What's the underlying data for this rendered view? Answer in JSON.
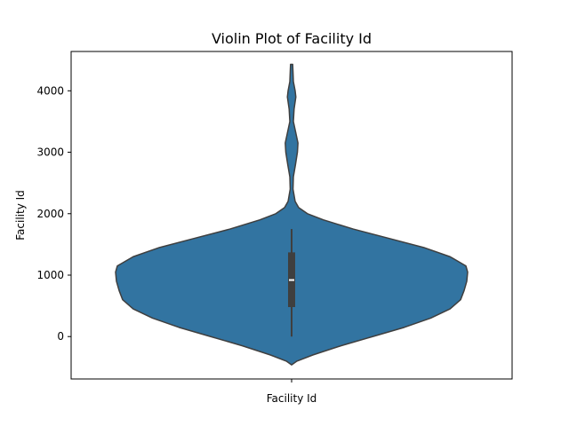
{
  "chart_data": {
    "type": "violin",
    "title": "Violin Plot of Facility Id",
    "xlabel": "",
    "ylabel": "Facility Id",
    "categories": [
      "Facility Id"
    ],
    "ylim": [
      -690,
      4640
    ],
    "yticks": [
      0,
      1000,
      2000,
      3000,
      4000
    ],
    "yticklabels": [
      "0",
      "1000",
      "2000",
      "3000",
      "4000"
    ],
    "grid": false,
    "legend": "none",
    "colors": {
      "violin_fill": "#3274a1",
      "violin_edge": "#3f3f3f",
      "box": "#3f3f3f",
      "median": "#ffffff"
    },
    "series": [
      {
        "density_profile": [
          {
            "y": -460,
            "w": 0.0
          },
          {
            "y": -400,
            "w": 0.03
          },
          {
            "y": -300,
            "w": 0.12
          },
          {
            "y": -150,
            "w": 0.28
          },
          {
            "y": 0,
            "w": 0.46
          },
          {
            "y": 150,
            "w": 0.64
          },
          {
            "y": 300,
            "w": 0.79
          },
          {
            "y": 450,
            "w": 0.9
          },
          {
            "y": 600,
            "w": 0.96
          },
          {
            "y": 750,
            "w": 0.98
          },
          {
            "y": 900,
            "w": 0.995
          },
          {
            "y": 1050,
            "w": 1.0
          },
          {
            "y": 1150,
            "w": 0.99
          },
          {
            "y": 1300,
            "w": 0.9
          },
          {
            "y": 1450,
            "w": 0.75
          },
          {
            "y": 1600,
            "w": 0.55
          },
          {
            "y": 1750,
            "w": 0.35
          },
          {
            "y": 1900,
            "w": 0.18
          },
          {
            "y": 2000,
            "w": 0.09
          },
          {
            "y": 2100,
            "w": 0.04
          },
          {
            "y": 2200,
            "w": 0.02
          },
          {
            "y": 2400,
            "w": 0.008
          },
          {
            "y": 2600,
            "w": 0.01
          },
          {
            "y": 2800,
            "w": 0.022
          },
          {
            "y": 3000,
            "w": 0.033
          },
          {
            "y": 3150,
            "w": 0.036
          },
          {
            "y": 3300,
            "w": 0.025
          },
          {
            "y": 3500,
            "w": 0.01
          },
          {
            "y": 3700,
            "w": 0.014
          },
          {
            "y": 3900,
            "w": 0.024
          },
          {
            "y": 4000,
            "w": 0.02
          },
          {
            "y": 4150,
            "w": 0.01
          },
          {
            "y": 4300,
            "w": 0.008
          },
          {
            "y": 4430,
            "w": 0.006
          }
        ],
        "whisker_low": 0,
        "q1": 480,
        "median": 920,
        "q3": 1370,
        "whisker_high": 1750
      }
    ]
  }
}
